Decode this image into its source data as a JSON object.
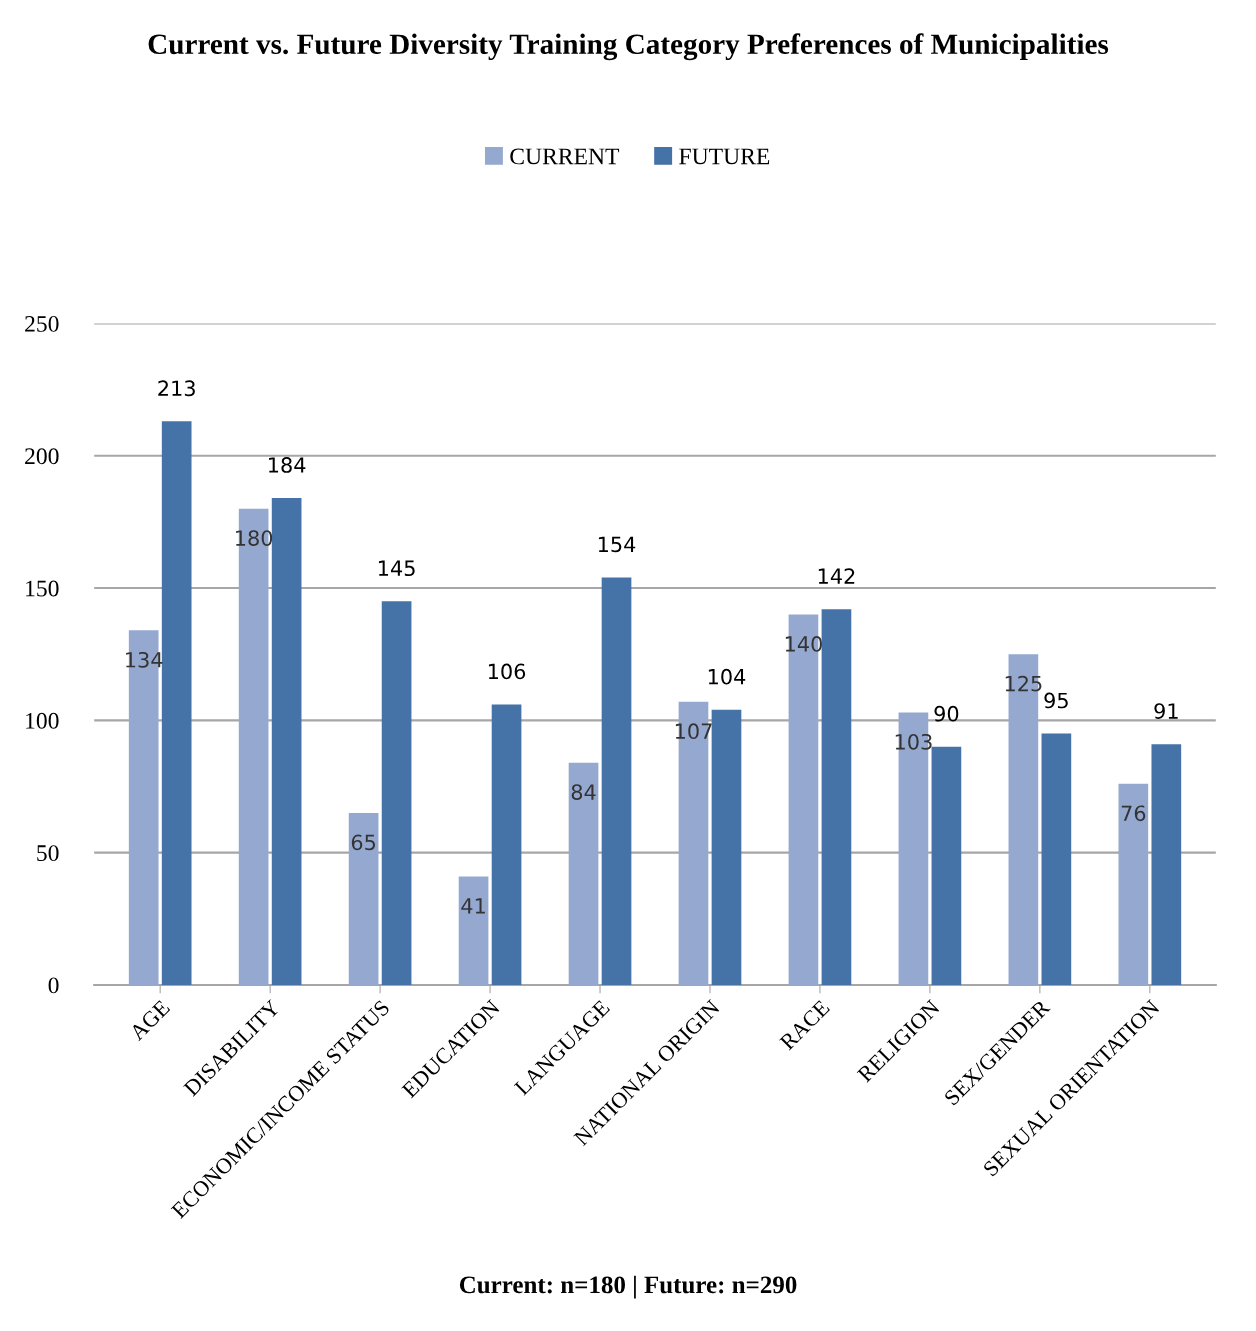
{
  "chart_data": {
    "type": "bar",
    "title": "Current vs. Future Diversity Training Category Preferences of Municipalities",
    "categories": [
      "AGE",
      "DISABILITY",
      "ECONOMIC/INCOME STATUS",
      "EDUCATION",
      "LANGUAGE",
      "NATIONAL ORIGIN",
      "RACE",
      "RELIGION",
      "SEX/GENDER",
      "SEXUAL ORIENTATION"
    ],
    "series": [
      {
        "name": "CURRENT",
        "color": "#95a9d0",
        "values": [
          134,
          180,
          65,
          41,
          84,
          107,
          140,
          103,
          125,
          76
        ]
      },
      {
        "name": "FUTURE",
        "color": "#4573a7",
        "values": [
          213,
          184,
          145,
          106,
          154,
          104,
          142,
          90,
          95,
          91
        ]
      }
    ],
    "ylim": [
      0,
      250
    ],
    "yticks": [
      0,
      50,
      100,
      150,
      200,
      250
    ],
    "grid": "y",
    "legend": "top",
    "data_labels": true,
    "annotations": [
      "Current: n=180 | Future: n=290"
    ]
  }
}
